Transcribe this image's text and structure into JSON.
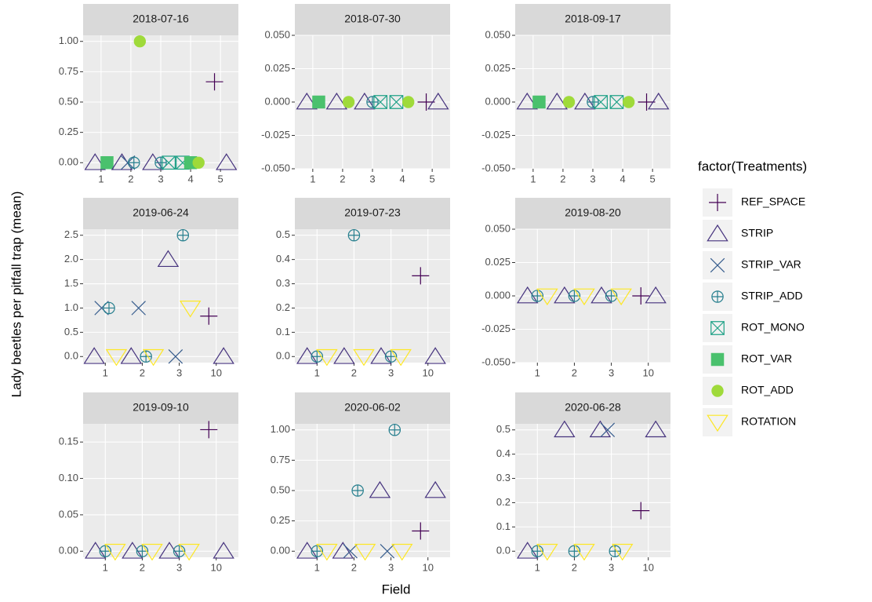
{
  "x_label": "Field",
  "y_label": "Lady beetles per pitfall trap (mean)",
  "legend": {
    "title": "factor(Treatments)",
    "series": [
      {
        "name": "REF_SPACE",
        "color": "#440154",
        "shape": "plus"
      },
      {
        "name": "STRIP",
        "color": "#46337E",
        "shape": "triangle"
      },
      {
        "name": "STRIP_VAR",
        "color": "#365C8D",
        "shape": "cross"
      },
      {
        "name": "STRIP_ADD",
        "color": "#277F8E",
        "shape": "circle-plus"
      },
      {
        "name": "ROT_MONO",
        "color": "#1FA187",
        "shape": "square-cross"
      },
      {
        "name": "ROT_VAR",
        "color": "#4AC16D",
        "shape": "square-filled"
      },
      {
        "name": "ROT_ADD",
        "color": "#9FDA3A",
        "shape": "circle-filled"
      },
      {
        "name": "ROTATION",
        "color": "#FDE725",
        "shape": "triangle-down"
      }
    ]
  },
  "chart_data": [
    {
      "type": "scatter",
      "title": "2018-07-16",
      "categories": [
        "1",
        "2",
        "3",
        "4",
        "5"
      ],
      "ylim": [
        -0.05,
        1.05
      ],
      "yticks": [
        {
          "value": 0,
          "label": "0.00"
        },
        0.25,
        {
          "value": 0.5,
          "label": "0.50"
        },
        0.75,
        {
          "value": 1,
          "label": "1.00"
        }
      ],
      "grid": true,
      "series": [
        {
          "values": [
            null,
            null,
            null,
            null,
            0.667
          ]
        },
        {
          "values": [
            0,
            0,
            0,
            null,
            0
          ]
        },
        {
          "values": [
            null,
            0,
            null,
            null,
            null
          ]
        },
        {
          "values": [
            null,
            0,
            0,
            null,
            null
          ]
        },
        {
          "values": [
            null,
            null,
            0,
            0,
            null
          ]
        },
        {
          "values": [
            0,
            null,
            null,
            0,
            null
          ]
        },
        {
          "values": [
            null,
            1,
            null,
            0,
            null
          ]
        },
        {
          "values": [
            null,
            null,
            null,
            null,
            null
          ]
        }
      ]
    },
    {
      "type": "scatter",
      "title": "2018-07-30",
      "categories": [
        "1",
        "2",
        "3",
        "4",
        "5"
      ],
      "ylim": [
        -0.05,
        0.05
      ],
      "yticks": [
        {
          "value": -0.05,
          "label": "-0.050"
        },
        -0.025,
        {
          "value": 0,
          "label": "0.000"
        },
        0.025,
        {
          "value": 0.05,
          "label": "0.050"
        }
      ],
      "grid": true,
      "series": [
        {
          "values": [
            null,
            null,
            null,
            null,
            0
          ]
        },
        {
          "values": [
            0,
            0,
            0,
            null,
            0
          ]
        },
        {
          "values": [
            null,
            null,
            null,
            null,
            null
          ]
        },
        {
          "values": [
            null,
            null,
            0,
            null,
            null
          ]
        },
        {
          "values": [
            null,
            null,
            0,
            0,
            null
          ]
        },
        {
          "values": [
            0,
            null,
            null,
            null,
            null
          ]
        },
        {
          "values": [
            null,
            0,
            null,
            0,
            null
          ]
        },
        {
          "values": [
            null,
            null,
            null,
            null,
            null
          ]
        }
      ]
    },
    {
      "type": "scatter",
      "title": "2018-09-17",
      "categories": [
        "1",
        "2",
        "3",
        "4",
        "5"
      ],
      "ylim": [
        -0.05,
        0.05
      ],
      "yticks": [
        {
          "value": -0.05,
          "label": "-0.050"
        },
        -0.025,
        {
          "value": 0,
          "label": "0.000"
        },
        0.025,
        {
          "value": 0.05,
          "label": "0.050"
        }
      ],
      "grid": true,
      "series": [
        {
          "values": [
            null,
            null,
            null,
            null,
            0
          ]
        },
        {
          "values": [
            0,
            0,
            0,
            null,
            0
          ]
        },
        {
          "values": [
            null,
            null,
            null,
            null,
            null
          ]
        },
        {
          "values": [
            null,
            null,
            0,
            null,
            null
          ]
        },
        {
          "values": [
            null,
            null,
            0,
            0,
            null
          ]
        },
        {
          "values": [
            0,
            null,
            null,
            null,
            null
          ]
        },
        {
          "values": [
            null,
            0,
            null,
            0,
            null
          ]
        },
        {
          "values": [
            null,
            null,
            null,
            null,
            null
          ]
        }
      ]
    },
    {
      "type": "scatter",
      "title": "2019-06-24",
      "categories": [
        "1",
        "2",
        "3",
        "10"
      ],
      "ylim": [
        -0.125,
        2.625
      ],
      "yticks": [
        {
          "value": 0,
          "label": "0.0"
        },
        0.5,
        {
          "value": 1,
          "label": "1.0"
        },
        1.5,
        {
          "value": 2,
          "label": "2.0"
        },
        2.5
      ],
      "grid": true,
      "series": [
        {
          "values": [
            null,
            null,
            null,
            0.833
          ]
        },
        {
          "values": [
            0,
            0,
            2,
            0
          ]
        },
        {
          "values": [
            1,
            1,
            0,
            null
          ]
        },
        {
          "values": [
            1,
            0,
            2.5,
            null
          ]
        },
        {
          "values": [
            null,
            null,
            null,
            null
          ]
        },
        {
          "values": [
            null,
            null,
            null,
            null
          ]
        },
        {
          "values": [
            null,
            null,
            null,
            null
          ]
        },
        {
          "values": [
            0,
            0,
            1,
            null
          ]
        }
      ]
    },
    {
      "type": "scatter",
      "title": "2019-07-23",
      "categories": [
        "1",
        "2",
        "3",
        "10"
      ],
      "ylim": [
        -0.025,
        0.525
      ],
      "yticks": [
        {
          "value": 0,
          "label": "0.0"
        },
        0.1,
        0.2,
        0.3,
        0.4,
        0.5
      ],
      "grid": true,
      "series": [
        {
          "values": [
            null,
            null,
            null,
            0.333
          ]
        },
        {
          "values": [
            0,
            0,
            0,
            0
          ]
        },
        {
          "values": [
            null,
            null,
            null,
            null
          ]
        },
        {
          "values": [
            0,
            0.5,
            0,
            null
          ]
        },
        {
          "values": [
            null,
            null,
            null,
            null
          ]
        },
        {
          "values": [
            null,
            null,
            null,
            null
          ]
        },
        {
          "values": [
            null,
            null,
            null,
            null
          ]
        },
        {
          "values": [
            0,
            0,
            0,
            null
          ]
        }
      ]
    },
    {
      "type": "scatter",
      "title": "2019-08-20",
      "categories": [
        "1",
        "2",
        "3",
        "10"
      ],
      "ylim": [
        -0.05,
        0.05
      ],
      "yticks": [
        {
          "value": -0.05,
          "label": "-0.050"
        },
        -0.025,
        {
          "value": 0,
          "label": "0.000"
        },
        0.025,
        {
          "value": 0.05,
          "label": "0.050"
        }
      ],
      "grid": true,
      "series": [
        {
          "values": [
            null,
            null,
            null,
            0
          ]
        },
        {
          "values": [
            0,
            0,
            0,
            0
          ]
        },
        {
          "values": [
            null,
            null,
            null,
            null
          ]
        },
        {
          "values": [
            0,
            0,
            0,
            null
          ]
        },
        {
          "values": [
            null,
            null,
            null,
            null
          ]
        },
        {
          "values": [
            null,
            null,
            null,
            null
          ]
        },
        {
          "values": [
            null,
            null,
            null,
            null
          ]
        },
        {
          "values": [
            0,
            0,
            0,
            null
          ]
        }
      ]
    },
    {
      "type": "scatter",
      "title": "2019-09-10",
      "categories": [
        "1",
        "2",
        "3",
        "10"
      ],
      "ylim": [
        -0.00833,
        0.175
      ],
      "yticks": [
        {
          "value": 0,
          "label": "0.00"
        },
        0.05,
        {
          "value": 0.1,
          "label": "0.10"
        },
        0.15
      ],
      "grid": true,
      "series": [
        {
          "values": [
            null,
            null,
            null,
            0.167
          ]
        },
        {
          "values": [
            0,
            0,
            0,
            0
          ]
        },
        {
          "values": [
            null,
            null,
            null,
            null
          ]
        },
        {
          "values": [
            0,
            0,
            0,
            null
          ]
        },
        {
          "values": [
            null,
            null,
            null,
            null
          ]
        },
        {
          "values": [
            null,
            null,
            null,
            null
          ]
        },
        {
          "values": [
            null,
            null,
            null,
            null
          ]
        },
        {
          "values": [
            0,
            0,
            0,
            null
          ]
        }
      ]
    },
    {
      "type": "scatter",
      "title": "2020-06-02",
      "categories": [
        "1",
        "2",
        "3",
        "10"
      ],
      "ylim": [
        -0.05,
        1.05
      ],
      "yticks": [
        {
          "value": 0,
          "label": "0.00"
        },
        0.25,
        {
          "value": 0.5,
          "label": "0.50"
        },
        0.75,
        {
          "value": 1,
          "label": "1.00"
        }
      ],
      "grid": true,
      "series": [
        {
          "values": [
            null,
            null,
            null,
            0.167
          ]
        },
        {
          "values": [
            0,
            0,
            0.5,
            0.5
          ]
        },
        {
          "values": [
            null,
            0,
            0,
            null
          ]
        },
        {
          "values": [
            0,
            0.5,
            1,
            null
          ]
        },
        {
          "values": [
            null,
            null,
            null,
            null
          ]
        },
        {
          "values": [
            null,
            null,
            null,
            null
          ]
        },
        {
          "values": [
            null,
            null,
            null,
            null
          ]
        },
        {
          "values": [
            0,
            0,
            0,
            null
          ]
        }
      ]
    },
    {
      "type": "scatter",
      "title": "2020-06-28",
      "categories": [
        "1",
        "2",
        "3",
        "10"
      ],
      "ylim": [
        -0.025,
        0.525
      ],
      "yticks": [
        {
          "value": 0,
          "label": "0.0"
        },
        0.1,
        0.2,
        0.3,
        0.4,
        0.5
      ],
      "grid": true,
      "series": [
        {
          "values": [
            null,
            null,
            null,
            0.167
          ]
        },
        {
          "values": [
            0,
            0.5,
            0.5,
            0.5
          ]
        },
        {
          "values": [
            null,
            null,
            0.5,
            null
          ]
        },
        {
          "values": [
            0,
            0,
            0,
            null
          ]
        },
        {
          "values": [
            null,
            null,
            null,
            null
          ]
        },
        {
          "values": [
            null,
            null,
            null,
            null
          ]
        },
        {
          "values": [
            null,
            null,
            null,
            null
          ]
        },
        {
          "values": [
            0,
            0,
            0,
            null
          ]
        }
      ]
    }
  ]
}
